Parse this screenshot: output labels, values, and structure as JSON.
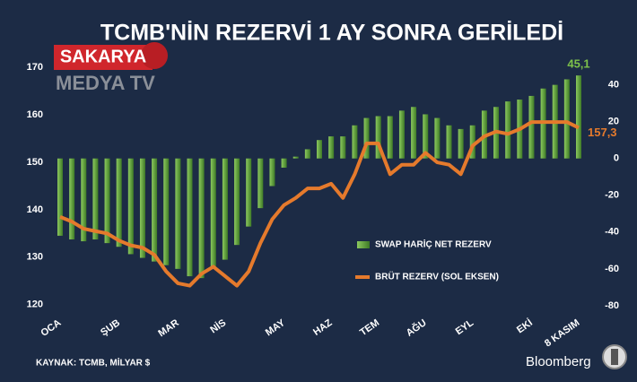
{
  "chart_data": {
    "type": "bar_line",
    "title": "TCMB'NİN REZERVİ 1 AY SONRA GERİLEDİ",
    "watermark": [
      "SAKARYA",
      "MEDYA TV"
    ],
    "source": "KAYNAK: TCMB, MİLYAR $",
    "brand": "Bloomberg",
    "categories": [
      "OCA",
      null,
      null,
      null,
      null,
      "ŞUB",
      null,
      null,
      null,
      null,
      "MAR",
      null,
      null,
      null,
      "NİS",
      null,
      null,
      null,
      null,
      "MAY",
      null,
      null,
      null,
      "HAZ",
      null,
      null,
      null,
      "TEM",
      null,
      null,
      null,
      "AĞU",
      null,
      null,
      null,
      "EYL",
      null,
      null,
      null,
      null,
      "EKİ",
      null,
      null,
      null,
      "8 KASIM"
    ],
    "series": [
      {
        "name": "SWAP HARİÇ NET REZERV",
        "color": "#5f9e3c",
        "axis": "y2",
        "kind": "bar",
        "values": [
          -42,
          -44,
          -45,
          -44,
          -46,
          -48,
          -52,
          -54,
          -56,
          -58,
          -60,
          -64,
          -65,
          -60,
          -55,
          -47,
          -37,
          -27,
          -15,
          -5,
          1,
          5,
          10,
          12,
          12,
          18,
          22,
          23,
          23,
          26,
          28,
          24,
          22,
          18,
          16,
          18,
          26,
          28,
          31,
          32,
          34,
          38,
          40,
          43,
          45.1
        ],
        "value_labels": [
          null,
          null,
          null,
          null,
          null,
          null,
          null,
          null,
          null,
          null,
          null,
          null,
          null,
          null,
          null,
          null,
          null,
          null,
          null,
          null,
          null,
          null,
          null,
          null,
          null,
          null,
          null,
          null,
          null,
          null,
          null,
          null,
          null,
          null,
          null,
          null,
          null,
          null,
          null,
          null,
          null,
          null,
          null,
          null,
          "45,1"
        ],
        "label_color": "#7dc24a"
      },
      {
        "name": "BRÜT REZERV (SOL EKSEN)",
        "color": "#e57a2c",
        "axis": "y",
        "kind": "line",
        "values": [
          138.5,
          137.5,
          136,
          135.5,
          135,
          133.5,
          132.5,
          132,
          130.5,
          127,
          124.5,
          124,
          126.5,
          128,
          126,
          124,
          127,
          133,
          138,
          141,
          142.5,
          144.5,
          144.5,
          145.5,
          142.5,
          147.5,
          154,
          154,
          147.5,
          149.5,
          149.5,
          152,
          150,
          149.5,
          147.5,
          153.5,
          155.5,
          156.5,
          156,
          157,
          158.5,
          158.5,
          158.5,
          158.5,
          157.3
        ],
        "value_labels": [
          null,
          null,
          null,
          null,
          null,
          null,
          null,
          null,
          null,
          null,
          null,
          null,
          null,
          null,
          null,
          null,
          null,
          null,
          null,
          null,
          null,
          null,
          null,
          null,
          null,
          null,
          null,
          null,
          null,
          null,
          null,
          null,
          null,
          null,
          null,
          null,
          null,
          null,
          null,
          null,
          null,
          null,
          null,
          null,
          "157,3"
        ],
        "label_color": "#e57a2c"
      }
    ],
    "ylim": [
      119,
      171
    ],
    "yticks": [
      120,
      130,
      140,
      150,
      160,
      170
    ],
    "y2lim": [
      -82,
      52
    ],
    "y2ticks": [
      -80,
      -60,
      -40,
      -20,
      0,
      20,
      40
    ],
    "grid": false
  }
}
